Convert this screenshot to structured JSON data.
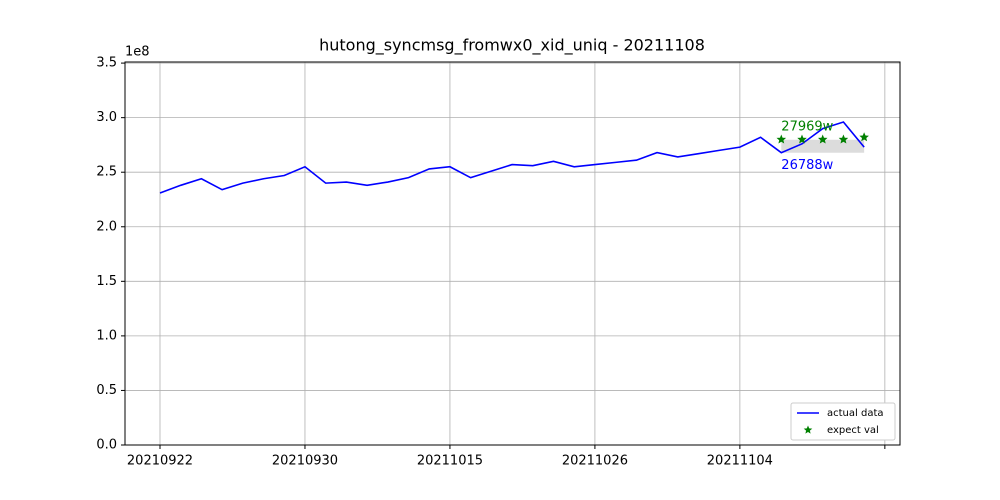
{
  "chart_data": {
    "type": "line",
    "title": "hutong_syncmsg_fromwx0_xid_uniq - 20211108",
    "y_offset_label": "1e8",
    "categories": [
      "20210922",
      null,
      null,
      null,
      null,
      null,
      null,
      "20210930",
      null,
      null,
      null,
      null,
      null,
      null,
      "20211015",
      null,
      null,
      null,
      null,
      null,
      null,
      "20211026",
      null,
      null,
      null,
      null,
      null,
      null,
      "20211104",
      null,
      null,
      null,
      null,
      null,
      null,
      null
    ],
    "series": [
      {
        "name": "actual data",
        "color": "#0000ff",
        "marker": "line",
        "values": [
          2.31,
          2.38,
          2.44,
          2.34,
          2.4,
          2.44,
          2.47,
          2.55,
          2.4,
          2.41,
          2.38,
          2.41,
          2.45,
          2.53,
          2.55,
          2.45,
          2.51,
          2.57,
          2.56,
          2.6,
          2.55,
          2.57,
          2.59,
          2.61,
          2.68,
          2.64,
          2.67,
          2.7,
          2.73,
          2.82,
          2.6788,
          2.76,
          2.9,
          2.96,
          2.73,
          null
        ]
      },
      {
        "name": "expect val",
        "color": "#008000",
        "marker": "star",
        "values": [
          null,
          null,
          null,
          null,
          null,
          null,
          null,
          null,
          null,
          null,
          null,
          null,
          null,
          null,
          null,
          null,
          null,
          null,
          null,
          null,
          null,
          null,
          null,
          null,
          null,
          null,
          null,
          null,
          null,
          null,
          2.8,
          2.8,
          2.8,
          2.8,
          2.82,
          null
        ]
      }
    ],
    "band": {
      "color": "#d3d3d3",
      "low": [
        null,
        null,
        null,
        null,
        null,
        null,
        null,
        null,
        null,
        null,
        null,
        null,
        null,
        null,
        null,
        null,
        null,
        null,
        null,
        null,
        null,
        null,
        null,
        null,
        null,
        null,
        null,
        null,
        null,
        null,
        2.6788,
        2.6788,
        2.6788,
        2.6788,
        2.6788,
        null
      ],
      "high": [
        null,
        null,
        null,
        null,
        null,
        null,
        null,
        null,
        null,
        null,
        null,
        null,
        null,
        null,
        null,
        null,
        null,
        null,
        null,
        null,
        null,
        null,
        null,
        null,
        null,
        null,
        null,
        null,
        null,
        null,
        2.7969,
        2.7969,
        2.7969,
        2.7969,
        2.7969,
        null
      ]
    },
    "annotations": [
      {
        "text": "27969w",
        "value": 2.7969,
        "color": "#008000",
        "position": "above"
      },
      {
        "text": "26788w",
        "value": 2.6788,
        "color": "#0000ff",
        "position": "below"
      }
    ],
    "ylim": [
      0,
      3.51
    ],
    "yticks": [
      {
        "value": 0,
        "label": "0.0"
      },
      {
        "value": 0.5,
        "label": "0.5"
      },
      {
        "value": 1,
        "label": "1.0"
      },
      {
        "value": 1.5,
        "label": "1.5"
      },
      {
        "value": 2,
        "label": "2.0"
      },
      {
        "value": 2.5,
        "label": "2.5"
      },
      {
        "value": 3,
        "label": "3.0"
      },
      {
        "value": 3.5,
        "label": "3.5"
      }
    ],
    "grid": true,
    "legend": "lower right"
  }
}
